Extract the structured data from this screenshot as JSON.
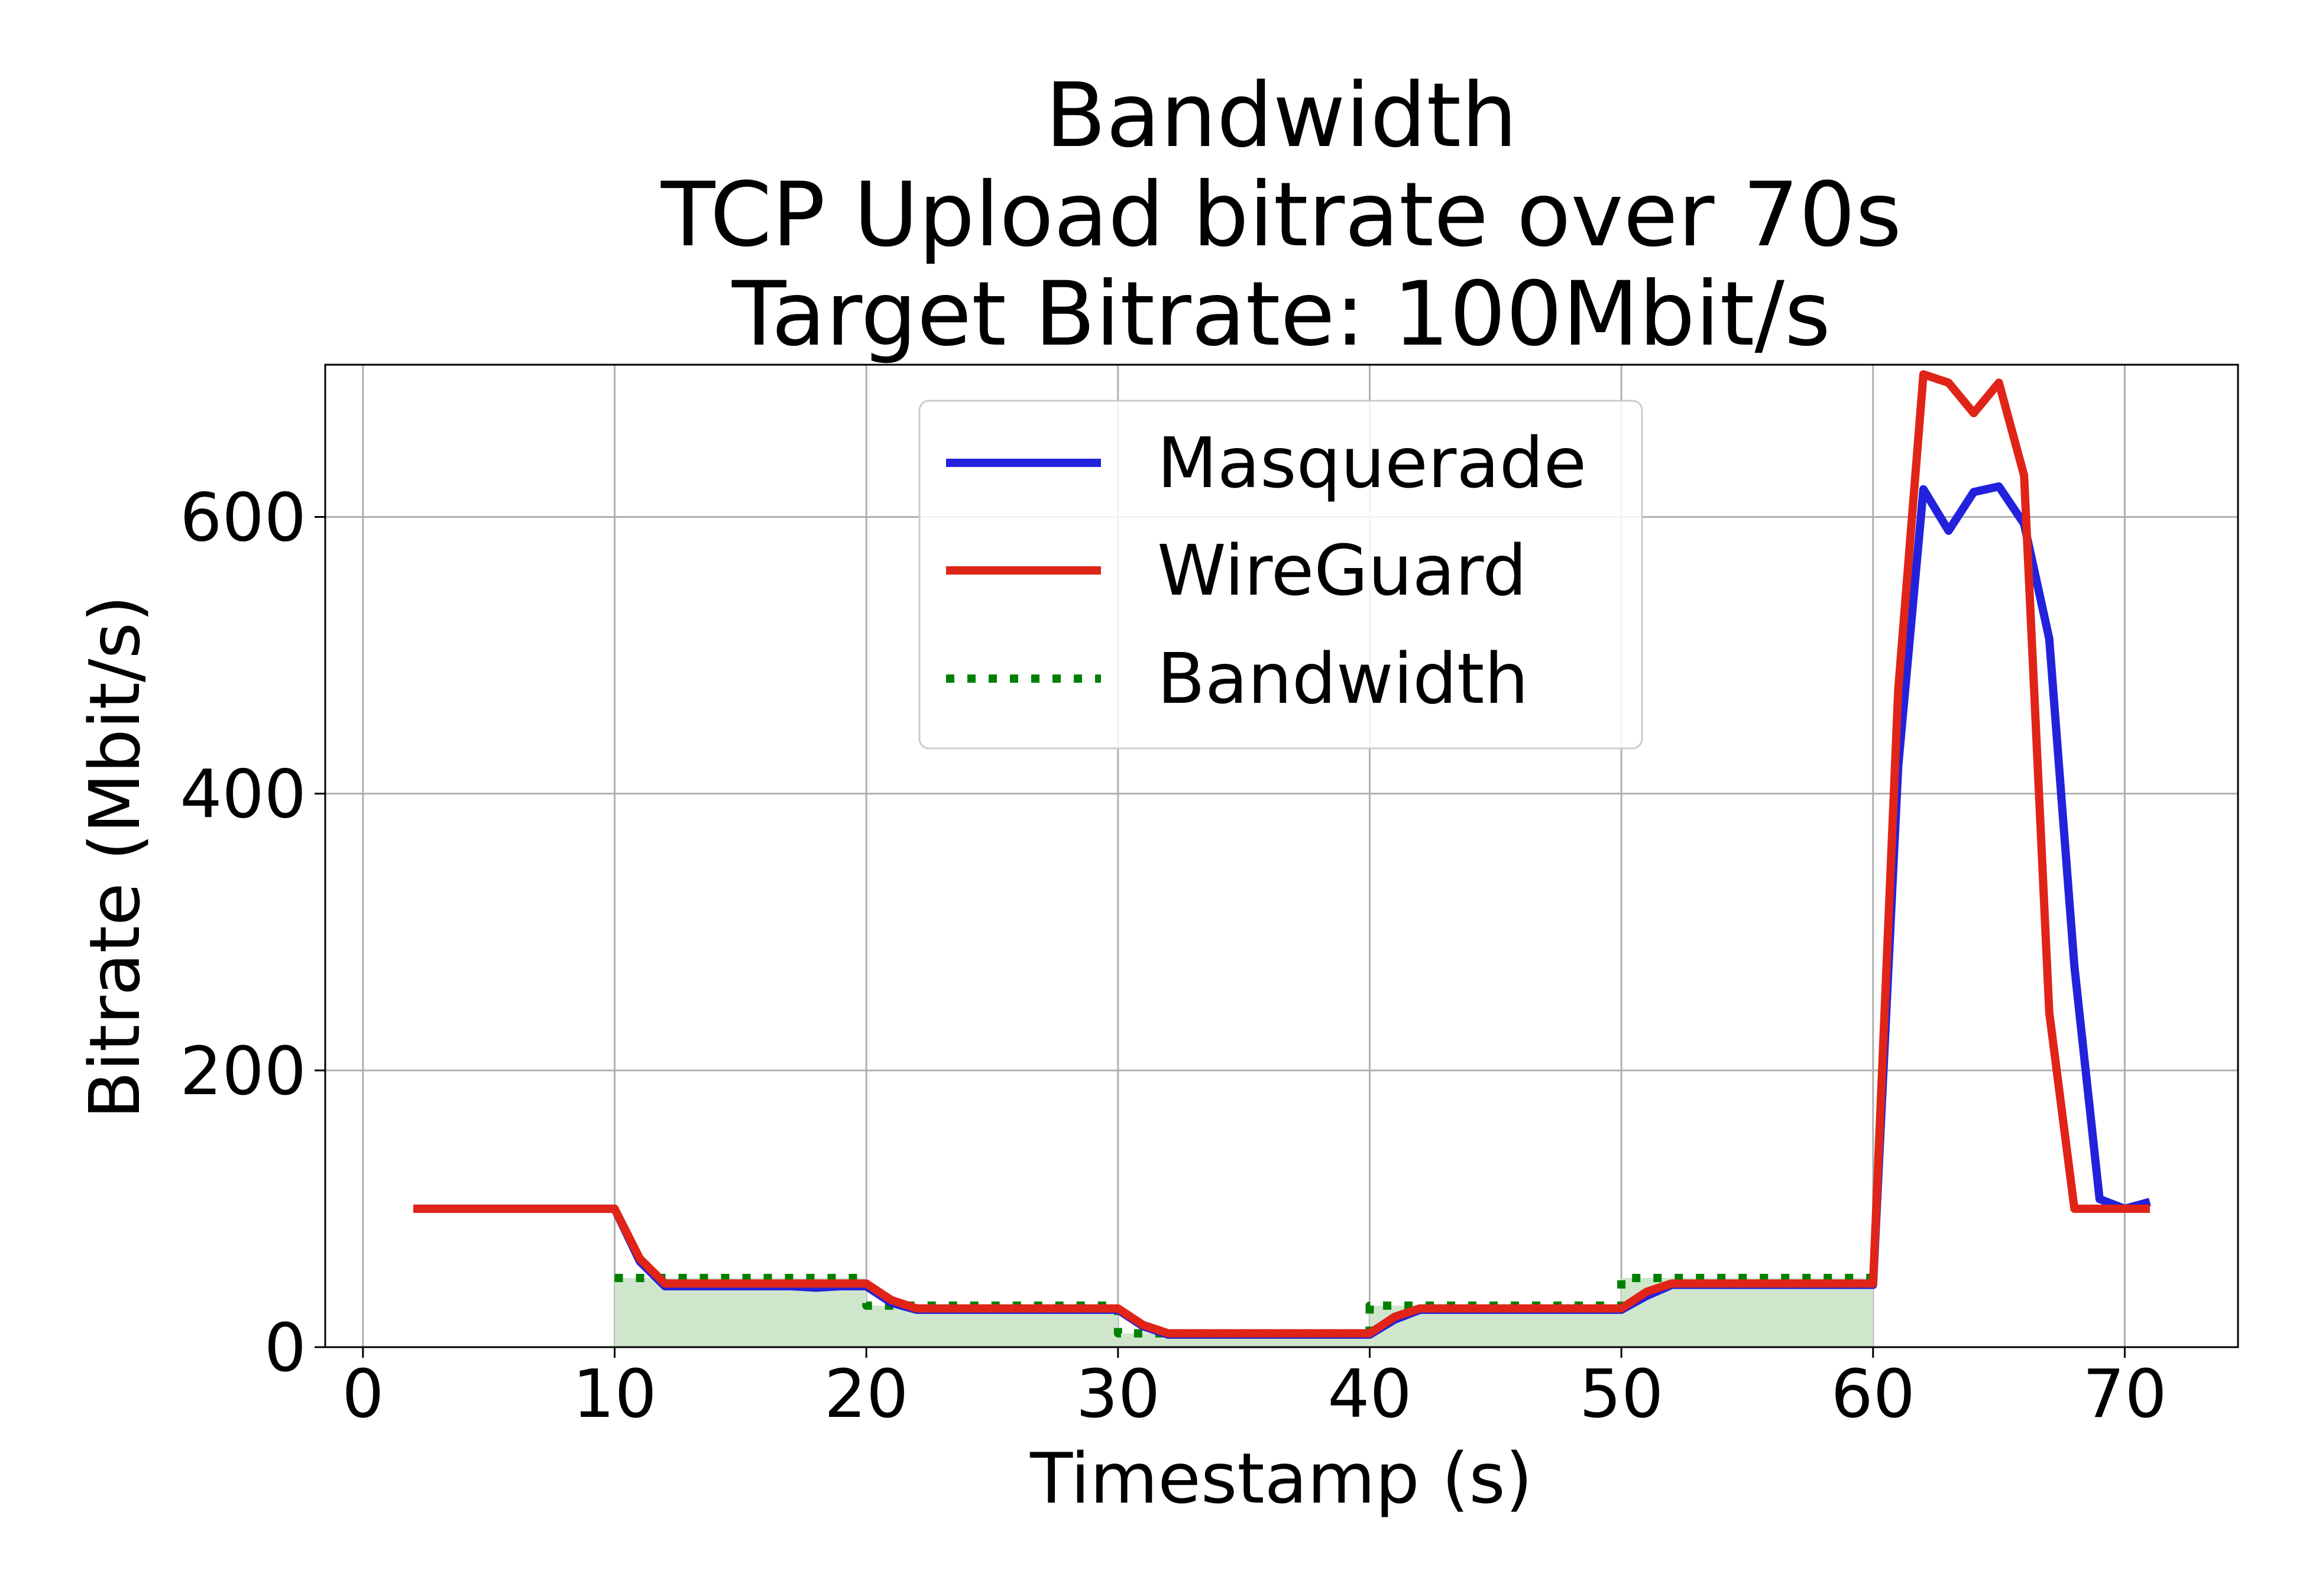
{
  "chart_data": {
    "type": "line",
    "title_lines": [
      "Bandwidth",
      "TCP Upload bitrate over 70s",
      "Target Bitrate: 100Mbit/s"
    ],
    "xlabel": "Timestamp (s)",
    "ylabel": "Bitrate (Mbit/s)",
    "xlim": [
      -1.5,
      74.5
    ],
    "ylim": [
      0,
      710
    ],
    "xticks": [
      0,
      10,
      20,
      30,
      40,
      50,
      60,
      70
    ],
    "yticks": [
      0,
      200,
      400,
      600
    ],
    "grid": true,
    "legend_position": "upper-center",
    "colors": {
      "masquerade": "#2222dd",
      "wireguard": "#e02418",
      "bandwidth_line": "#008000",
      "bandwidth_fill": "#cfe6cc"
    },
    "series": [
      {
        "name": "Masquerade",
        "style": "solid",
        "x": [
          2,
          3,
          4,
          5,
          6,
          7,
          8,
          9,
          10,
          11,
          12,
          13,
          14,
          15,
          16,
          17,
          18,
          19,
          20,
          21,
          22,
          23,
          24,
          25,
          26,
          27,
          28,
          29,
          30,
          31,
          32,
          33,
          34,
          35,
          36,
          37,
          38,
          39,
          40,
          41,
          42,
          43,
          44,
          45,
          46,
          47,
          48,
          49,
          50,
          51,
          52,
          53,
          54,
          55,
          56,
          57,
          58,
          59,
          60,
          61,
          62,
          63,
          64,
          65,
          66,
          67,
          68,
          69,
          70,
          71
        ],
        "y": [
          100,
          100,
          100,
          100,
          100,
          100,
          100,
          100,
          100,
          62,
          44,
          44,
          44,
          44,
          44,
          44,
          43,
          44,
          44,
          32,
          27,
          27,
          27,
          27,
          27,
          27,
          27,
          27,
          27,
          15,
          9,
          9,
          9,
          9,
          9,
          9,
          9,
          9,
          9,
          20,
          27,
          27,
          27,
          27,
          27,
          27,
          27,
          27,
          27,
          37,
          45,
          45,
          45,
          45,
          45,
          45,
          45,
          45,
          45,
          420,
          620,
          590,
          618,
          622,
          595,
          512,
          275,
          107,
          100,
          105
        ]
      },
      {
        "name": "WireGuard",
        "style": "solid",
        "x": [
          2,
          3,
          4,
          5,
          6,
          7,
          8,
          9,
          10,
          11,
          12,
          13,
          14,
          15,
          16,
          17,
          18,
          19,
          20,
          21,
          22,
          23,
          24,
          25,
          26,
          27,
          28,
          29,
          30,
          31,
          32,
          33,
          34,
          35,
          36,
          37,
          38,
          39,
          40,
          41,
          42,
          43,
          44,
          45,
          46,
          47,
          48,
          49,
          50,
          51,
          52,
          53,
          54,
          55,
          56,
          57,
          58,
          59,
          60,
          61,
          62,
          63,
          64,
          65,
          66,
          67,
          68,
          69,
          70,
          71
        ],
        "y": [
          100,
          100,
          100,
          100,
          100,
          100,
          100,
          100,
          100,
          64,
          46,
          46,
          46,
          46,
          46,
          46,
          46,
          46,
          46,
          34,
          28,
          28,
          28,
          28,
          28,
          28,
          28,
          28,
          28,
          16,
          10,
          10,
          10,
          10,
          10,
          10,
          10,
          10,
          10,
          22,
          28,
          28,
          28,
          28,
          28,
          28,
          28,
          28,
          28,
          40,
          46,
          46,
          46,
          46,
          46,
          46,
          46,
          46,
          46,
          475,
          703,
          697,
          675,
          697,
          630,
          242,
          100,
          100,
          100,
          100
        ]
      },
      {
        "name": "Bandwidth",
        "style": "dotted-step",
        "x": [
          10,
          20,
          20,
          30,
          30,
          40,
          40,
          50,
          50,
          60
        ],
        "y": [
          50,
          50,
          30,
          30,
          10,
          10,
          30,
          30,
          50,
          50
        ]
      }
    ]
  }
}
